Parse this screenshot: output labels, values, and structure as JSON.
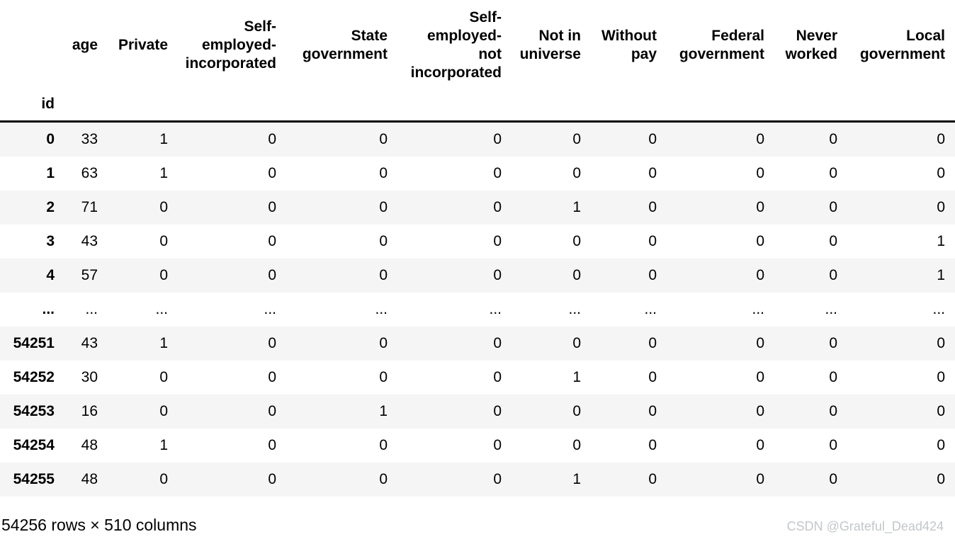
{
  "table": {
    "index_name": "id",
    "columns": [
      "age",
      "Private",
      "Self-\nemployed-\nincorporated",
      "State\ngovernment",
      "Self-\nemployed-\nnot\nincorporated",
      "Not in\nuniverse",
      "Without\npay",
      "Federal\ngovernment",
      "Never\nworked",
      "Local\ngovernment"
    ],
    "rows": [
      {
        "index": "0",
        "cells": [
          "33",
          "1",
          "0",
          "0",
          "0",
          "0",
          "0",
          "0",
          "0",
          "0"
        ]
      },
      {
        "index": "1",
        "cells": [
          "63",
          "1",
          "0",
          "0",
          "0",
          "0",
          "0",
          "0",
          "0",
          "0"
        ]
      },
      {
        "index": "2",
        "cells": [
          "71",
          "0",
          "0",
          "0",
          "0",
          "1",
          "0",
          "0",
          "0",
          "0"
        ]
      },
      {
        "index": "3",
        "cells": [
          "43",
          "0",
          "0",
          "0",
          "0",
          "0",
          "0",
          "0",
          "0",
          "1"
        ]
      },
      {
        "index": "4",
        "cells": [
          "57",
          "0",
          "0",
          "0",
          "0",
          "0",
          "0",
          "0",
          "0",
          "1"
        ]
      },
      {
        "index": "...",
        "cells": [
          "...",
          "...",
          "...",
          "...",
          "...",
          "...",
          "...",
          "...",
          "...",
          "..."
        ]
      },
      {
        "index": "54251",
        "cells": [
          "43",
          "1",
          "0",
          "0",
          "0",
          "0",
          "0",
          "0",
          "0",
          "0"
        ]
      },
      {
        "index": "54252",
        "cells": [
          "30",
          "0",
          "0",
          "0",
          "0",
          "1",
          "0",
          "0",
          "0",
          "0"
        ]
      },
      {
        "index": "54253",
        "cells": [
          "16",
          "0",
          "0",
          "1",
          "0",
          "0",
          "0",
          "0",
          "0",
          "0"
        ]
      },
      {
        "index": "54254",
        "cells": [
          "48",
          "1",
          "0",
          "0",
          "0",
          "0",
          "0",
          "0",
          "0",
          "0"
        ]
      },
      {
        "index": "54255",
        "cells": [
          "48",
          "0",
          "0",
          "0",
          "0",
          "1",
          "0",
          "0",
          "0",
          "0"
        ]
      }
    ]
  },
  "footer": {
    "summary": "54256 rows × 510 columns"
  },
  "watermark": {
    "text": "CSDN @Grateful_Dead424"
  },
  "colors": {
    "row_stripe": "#f5f5f5",
    "header_border": "#000000",
    "watermark_text": "#c3c7ca"
  }
}
